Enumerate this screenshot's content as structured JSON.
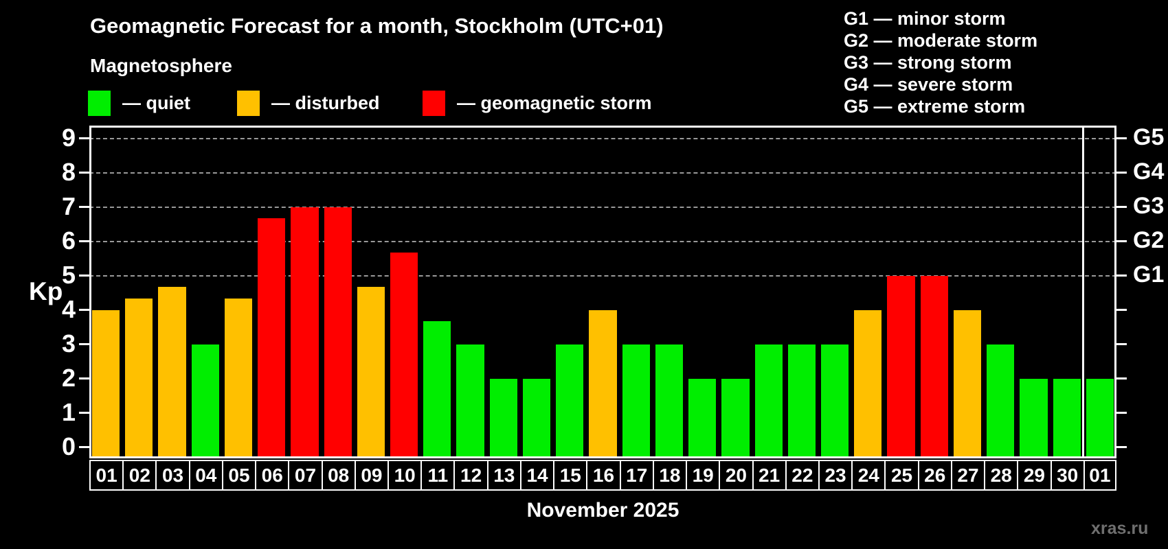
{
  "header": {
    "title": "Geomagnetic Forecast for a month, Stockholm (UTC+01)",
    "subtitle": "Magnetosphere",
    "legend": [
      {
        "label": "— quiet",
        "status": "quiet"
      },
      {
        "label": "— disturbed",
        "status": "disturbed"
      },
      {
        "label": "— geomagnetic storm",
        "status": "storm"
      }
    ],
    "g_scale_legend": [
      "G1 — minor storm",
      "G2 — moderate storm",
      "G3 — strong storm",
      "G4 — severe storm",
      "G5 — extreme storm"
    ]
  },
  "chart_data": {
    "type": "bar",
    "title": "Geomagnetic Forecast for a month, Stockholm (UTC+01)",
    "subtitle": "Magnetosphere",
    "ylabel": "Kp",
    "xlabel": "November 2025",
    "ylim": [
      0,
      9
    ],
    "grid": "horizontal dashed lines at Kp 5,6,7,8,9 only",
    "legend_position": "top-left",
    "categories": [
      "01",
      "02",
      "03",
      "04",
      "05",
      "06",
      "07",
      "08",
      "09",
      "10",
      "11",
      "12",
      "13",
      "14",
      "15",
      "16",
      "17",
      "18",
      "19",
      "20",
      "21",
      "22",
      "23",
      "24",
      "25",
      "26",
      "27",
      "28",
      "29",
      "30",
      "01"
    ],
    "values": [
      4,
      4.33,
      4.67,
      3,
      4.33,
      6.67,
      7,
      7,
      4.67,
      5.67,
      3.67,
      3,
      2,
      2,
      3,
      4,
      3,
      3,
      2,
      2,
      3,
      3,
      3,
      4,
      5,
      5,
      4,
      3,
      2,
      2,
      2
    ],
    "statuses": [
      "disturbed",
      "disturbed",
      "disturbed",
      "quiet",
      "disturbed",
      "storm",
      "storm",
      "storm",
      "disturbed",
      "storm",
      "quiet",
      "quiet",
      "quiet",
      "quiet",
      "quiet",
      "disturbed",
      "quiet",
      "quiet",
      "quiet",
      "quiet",
      "quiet",
      "quiet",
      "quiet",
      "disturbed",
      "storm",
      "storm",
      "disturbed",
      "quiet",
      "quiet",
      "quiet",
      "quiet"
    ],
    "colors": {
      "quiet": "#00ee00",
      "disturbed": "#ffc000",
      "storm": "#ff0000"
    },
    "background_color": "#000000",
    "axis_color": "#ffffff",
    "gridline_color": "#9a9a9a",
    "y_ticks_left": [
      "0",
      "1",
      "2",
      "3",
      "4",
      "5",
      "6",
      "7",
      "8",
      "9"
    ],
    "g_labels_right": [
      {
        "label": "G1",
        "kp": 5
      },
      {
        "label": "G2",
        "kp": 6
      },
      {
        "label": "G3",
        "kp": 7
      },
      {
        "label": "G4",
        "kp": 8
      },
      {
        "label": "G5",
        "kp": 9
      }
    ],
    "month_separator_after_index": 29
  },
  "footer": {
    "xaxis_label": "November 2025",
    "watermark": "xras.ru"
  }
}
